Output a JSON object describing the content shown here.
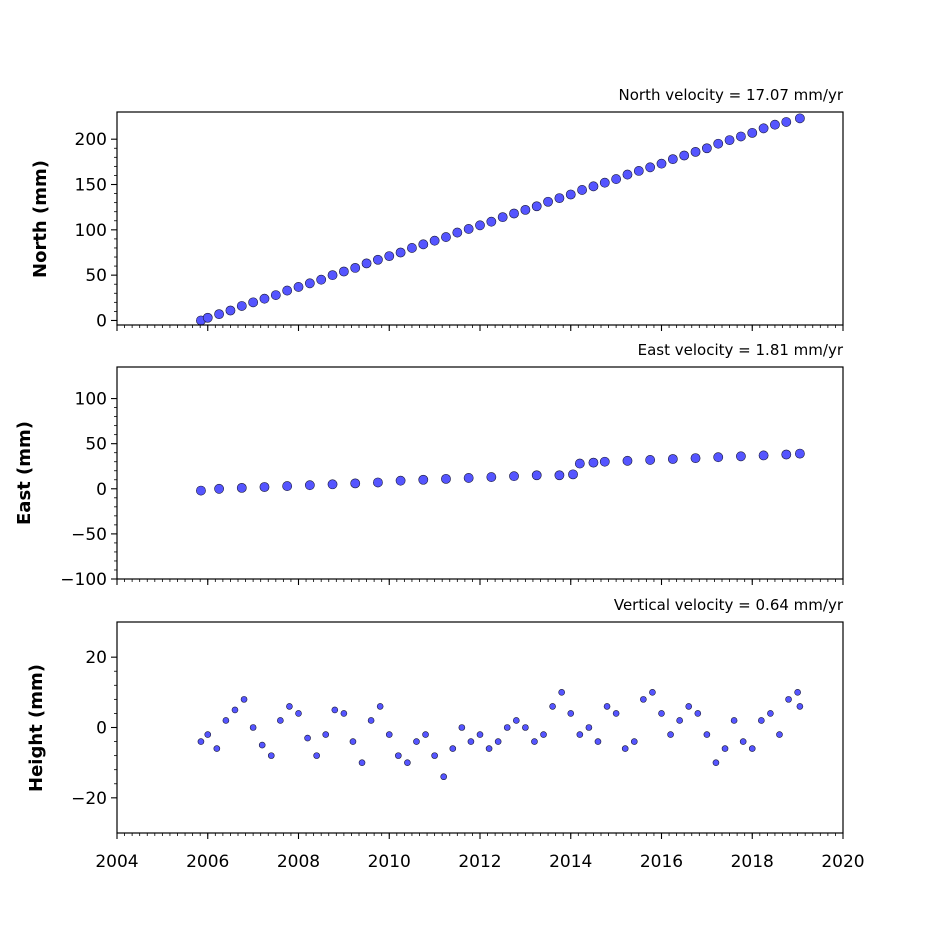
{
  "chart_data": [
    {
      "type": "scatter",
      "title": "North velocity = 17.07 mm/yr",
      "xlabel": "",
      "ylabel": "North (mm)",
      "xlim": [
        2004,
        2020
      ],
      "ylim": [
        -5,
        230
      ],
      "yticks": [
        0,
        50,
        100,
        150,
        200
      ],
      "xticks_labeled": false,
      "grid": false,
      "marker_color": "#5555ff",
      "series": [
        {
          "x": [
            2005.85,
            2006.0,
            2006.25,
            2006.5,
            2006.75,
            2007.0,
            2007.25,
            2007.5,
            2007.75,
            2008.0,
            2008.25,
            2008.5,
            2008.75,
            2009.0,
            2009.25,
            2009.5,
            2009.75,
            2010.0,
            2010.25,
            2010.5,
            2010.75,
            2011.0,
            2011.25,
            2011.5,
            2011.75,
            2012.0,
            2012.25,
            2012.5,
            2012.75,
            2013.0,
            2013.25,
            2013.5,
            2013.75,
            2014.0,
            2014.25,
            2014.5,
            2014.75,
            2015.0,
            2015.25,
            2015.5,
            2015.75,
            2016.0,
            2016.25,
            2016.5,
            2016.75,
            2017.0,
            2017.25,
            2017.5,
            2017.75,
            2018.0,
            2018.25,
            2018.5,
            2018.75,
            2019.05
          ],
          "y": [
            0,
            3,
            7,
            11,
            16,
            20,
            24,
            28,
            33,
            37,
            41,
            45,
            50,
            54,
            58,
            63,
            67,
            71,
            75,
            80,
            84,
            88,
            92,
            97,
            101,
            105,
            109,
            114,
            118,
            122,
            126,
            131,
            135,
            139,
            144,
            148,
            152,
            156,
            161,
            165,
            169,
            173,
            178,
            182,
            186,
            190,
            195,
            199,
            203,
            207,
            212,
            216,
            219,
            223
          ]
        }
      ]
    },
    {
      "type": "scatter",
      "title": "East velocity = 1.81 mm/yr",
      "xlabel": "",
      "ylabel": "East (mm)",
      "xlim": [
        2004,
        2020
      ],
      "ylim": [
        -100,
        135
      ],
      "yticks": [
        -100,
        -50,
        0,
        50,
        100
      ],
      "xticks_labeled": false,
      "grid": false,
      "marker_color": "#5555ff",
      "series": [
        {
          "x": [
            2005.85,
            2006.25,
            2006.75,
            2007.25,
            2007.75,
            2008.25,
            2008.75,
            2009.25,
            2009.75,
            2010.25,
            2010.75,
            2011.25,
            2011.75,
            2012.25,
            2012.75,
            2013.25,
            2013.75,
            2014.05,
            2014.2,
            2014.5,
            2014.75,
            2015.25,
            2015.75,
            2016.25,
            2016.75,
            2017.25,
            2017.75,
            2018.25,
            2018.75,
            2019.05
          ],
          "y": [
            -2,
            0,
            1,
            2,
            3,
            4,
            5,
            6,
            7,
            9,
            10,
            11,
            12,
            13,
            14,
            15,
            15,
            16,
            28,
            29,
            30,
            31,
            32,
            33,
            34,
            35,
            36,
            37,
            38,
            39
          ]
        }
      ]
    },
    {
      "type": "scatter",
      "title": "Vertical velocity = 0.64 mm/yr",
      "xlabel": "",
      "ylabel": "Height (mm)",
      "xlim": [
        2004,
        2020
      ],
      "ylim": [
        -30,
        30
      ],
      "yticks": [
        -20,
        0,
        20
      ],
      "xticks": [
        2004,
        2006,
        2008,
        2010,
        2012,
        2014,
        2016,
        2018,
        2020
      ],
      "xticks_labeled": true,
      "grid": false,
      "marker_color": "#5555ff",
      "series": [
        {
          "x": [
            2005.85,
            2006.0,
            2006.2,
            2006.4,
            2006.6,
            2006.8,
            2007.0,
            2007.2,
            2007.4,
            2007.6,
            2007.8,
            2008.0,
            2008.2,
            2008.4,
            2008.6,
            2008.8,
            2009.0,
            2009.2,
            2009.4,
            2009.6,
            2009.8,
            2010.0,
            2010.2,
            2010.4,
            2010.6,
            2010.8,
            2011.0,
            2011.2,
            2011.4,
            2011.6,
            2011.8,
            2012.0,
            2012.2,
            2012.4,
            2012.6,
            2012.8,
            2013.0,
            2013.2,
            2013.4,
            2013.6,
            2013.8,
            2014.0,
            2014.2,
            2014.4,
            2014.6,
            2014.8,
            2015.0,
            2015.2,
            2015.4,
            2015.6,
            2015.8,
            2016.0,
            2016.2,
            2016.4,
            2016.6,
            2016.8,
            2017.0,
            2017.2,
            2017.4,
            2017.6,
            2017.8,
            2018.0,
            2018.2,
            2018.4,
            2018.6,
            2018.8,
            2019.0,
            2019.05
          ],
          "y": [
            -4,
            -2,
            -6,
            2,
            5,
            8,
            0,
            -5,
            -8,
            2,
            6,
            4,
            -3,
            -8,
            -2,
            5,
            4,
            -4,
            -10,
            2,
            6,
            -2,
            -8,
            -10,
            -4,
            -2,
            -8,
            -14,
            -6,
            0,
            -4,
            -2,
            -6,
            -4,
            0,
            2,
            0,
            -4,
            -2,
            6,
            10,
            4,
            -2,
            0,
            -4,
            6,
            4,
            -6,
            -4,
            8,
            10,
            4,
            -2,
            2,
            6,
            4,
            -2,
            -10,
            -6,
            2,
            -4,
            -6,
            2,
            4,
            -2,
            8,
            10,
            6
          ]
        }
      ]
    }
  ]
}
